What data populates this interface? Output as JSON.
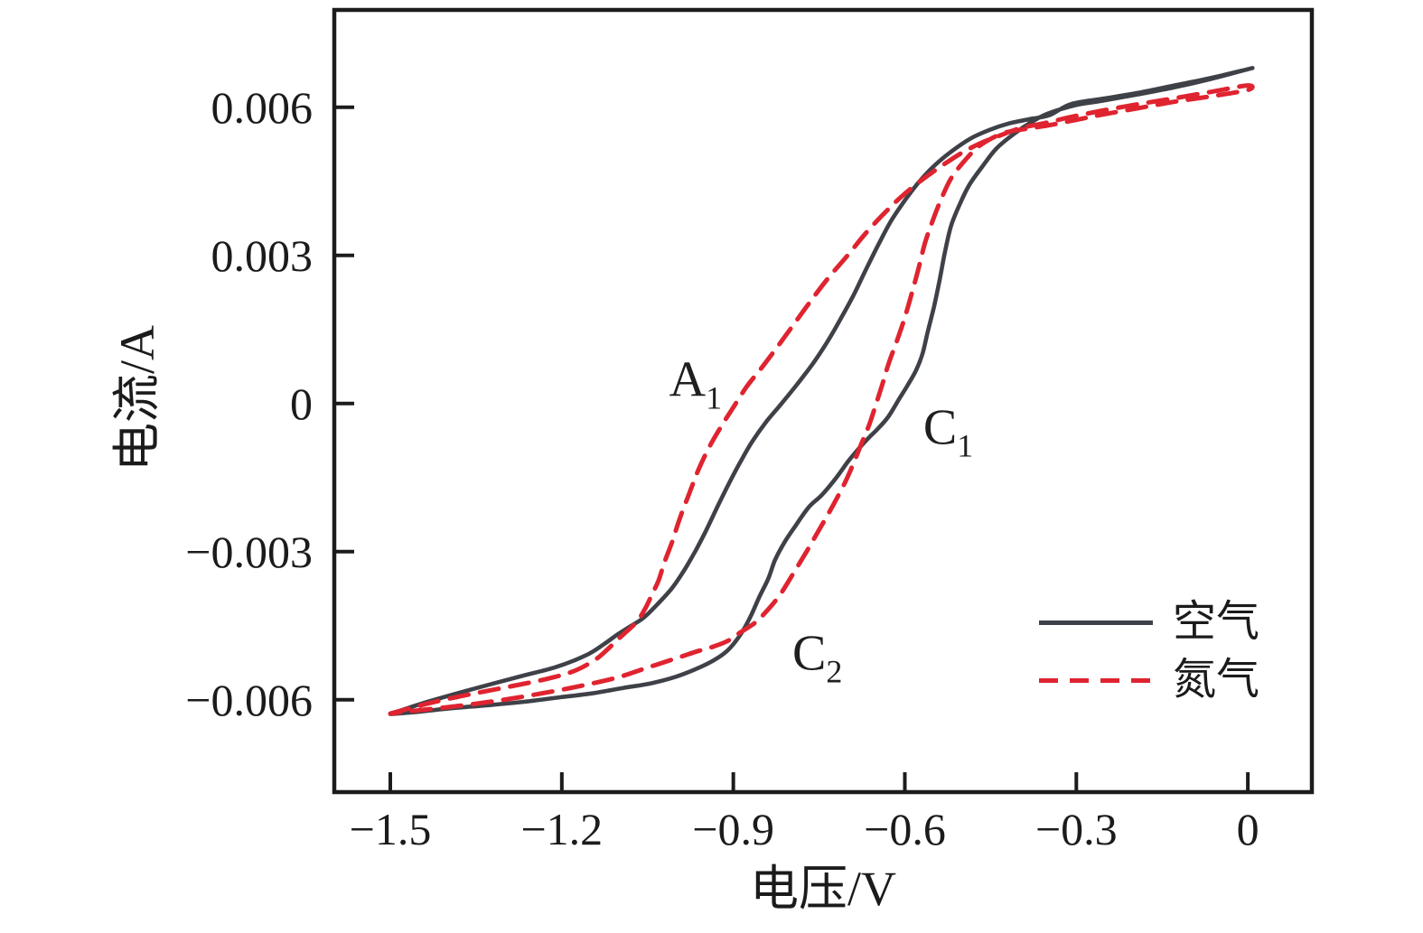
{
  "page": {
    "background": "#ffffff"
  },
  "chart_data": {
    "type": "line",
    "title": "",
    "xlabel": "电压/V",
    "ylabel": "电流/A",
    "xlim": [
      -1.598,
      0.112
    ],
    "ylim": [
      -0.00787,
      0.00797
    ],
    "grid": false,
    "frame": true,
    "tick_direction": "in",
    "spine_color": "#1c1c1c",
    "xticks": [
      {
        "value": -1.5,
        "label": "−1.5"
      },
      {
        "value": -1.2,
        "label": "−1.2"
      },
      {
        "value": -0.9,
        "label": "−0.9"
      },
      {
        "value": -0.6,
        "label": "−0.6"
      },
      {
        "value": -0.3,
        "label": "−0.3"
      },
      {
        "value": 0,
        "label": "0"
      }
    ],
    "yticks": [
      {
        "value": 0.006,
        "label": "0.006"
      },
      {
        "value": 0.003,
        "label": "0.003"
      },
      {
        "value": 0,
        "label": "0"
      },
      {
        "value": -0.003,
        "label": "−0.003"
      },
      {
        "value": -0.006,
        "label": "−0.006"
      }
    ],
    "legend_position": "lower right",
    "series": [
      {
        "name": "空气",
        "color": "#3f4148",
        "line_style": "solid",
        "line_width": 4.6,
        "points_return": [
          [
            -1.5,
            -0.00629
          ],
          [
            -1.44,
            -0.00606
          ],
          [
            -1.361,
            -0.0058
          ],
          [
            -1.274,
            -0.00553
          ],
          [
            -1.211,
            -0.00534
          ],
          [
            -1.158,
            -0.0051
          ],
          [
            -1.127,
            -0.00488
          ],
          [
            -1.103,
            -0.00468
          ],
          [
            -1.081,
            -0.00452
          ],
          [
            -1.057,
            -0.00434
          ],
          [
            -1.034,
            -0.00408
          ],
          [
            -1.008,
            -0.00375
          ],
          [
            -0.986,
            -0.00338
          ],
          [
            -0.966,
            -0.00298
          ],
          [
            -0.948,
            -0.00258
          ],
          [
            -0.929,
            -0.00212
          ],
          [
            -0.909,
            -0.00165
          ],
          [
            -0.888,
            -0.00119
          ],
          [
            -0.868,
            -0.00079
          ],
          [
            -0.843,
            -0.00038
          ],
          [
            -0.817,
            -2e-05
          ],
          [
            -0.789,
            0.00038
          ],
          [
            -0.76,
            0.00082
          ],
          [
            -0.735,
            0.00126
          ],
          [
            -0.711,
            0.00174
          ],
          [
            -0.689,
            0.00221
          ],
          [
            -0.669,
            0.00269
          ],
          [
            -0.647,
            0.0032
          ],
          [
            -0.625,
            0.00368
          ],
          [
            -0.602,
            0.00408
          ],
          [
            -0.577,
            0.00446
          ],
          [
            -0.549,
            0.00481
          ],
          [
            -0.519,
            0.0051
          ],
          [
            -0.486,
            0.00536
          ],
          [
            -0.452,
            0.00554
          ],
          [
            -0.418,
            0.00567
          ],
          [
            -0.381,
            0.00576
          ],
          [
            -0.347,
            0.00584
          ],
          [
            -0.31,
            0.00606
          ],
          [
            -0.255,
            0.00617
          ],
          [
            -0.192,
            0.00629
          ],
          [
            -0.129,
            0.00644
          ],
          [
            -0.065,
            0.00659
          ],
          [
            0.0,
            0.00677
          ]
        ],
        "points_forward": [
          [
            0.0,
            0.00677
          ],
          [
            -0.065,
            0.00657
          ],
          [
            -0.129,
            0.0064
          ],
          [
            -0.192,
            0.00626
          ],
          [
            -0.255,
            0.00613
          ],
          [
            -0.302,
            0.00604
          ],
          [
            -0.35,
            0.00587
          ],
          [
            -0.377,
            0.00571
          ],
          [
            -0.408,
            0.00547
          ],
          [
            -0.44,
            0.00516
          ],
          [
            -0.465,
            0.00479
          ],
          [
            -0.487,
            0.00443
          ],
          [
            -0.503,
            0.00406
          ],
          [
            -0.519,
            0.0036
          ],
          [
            -0.53,
            0.00306
          ],
          [
            -0.539,
            0.00251
          ],
          [
            -0.549,
            0.00196
          ],
          [
            -0.56,
            0.00145
          ],
          [
            -0.569,
            0.00101
          ],
          [
            -0.58,
            0.00068
          ],
          [
            -0.595,
            0.00037
          ],
          [
            -0.609,
            0.00011
          ],
          [
            -0.629,
            -0.00027
          ],
          [
            -0.647,
            -0.00051
          ],
          [
            -0.662,
            -0.00068
          ],
          [
            -0.681,
            -0.00092
          ],
          [
            -0.699,
            -0.00117
          ],
          [
            -0.721,
            -0.00152
          ],
          [
            -0.745,
            -0.00185
          ],
          [
            -0.768,
            -0.0021
          ],
          [
            -0.792,
            -0.00249
          ],
          [
            -0.811,
            -0.00282
          ],
          [
            -0.827,
            -0.00317
          ],
          [
            -0.839,
            -0.00355
          ],
          [
            -0.855,
            -0.00393
          ],
          [
            -0.871,
            -0.00434
          ],
          [
            -0.887,
            -0.00467
          ],
          [
            -0.909,
            -0.00499
          ],
          [
            -0.934,
            -0.0052
          ],
          [
            -0.966,
            -0.00538
          ],
          [
            -1.002,
            -0.00554
          ],
          [
            -1.045,
            -0.00567
          ],
          [
            -1.092,
            -0.00576
          ],
          [
            -1.147,
            -0.00587
          ],
          [
            -1.203,
            -0.00595
          ],
          [
            -1.266,
            -0.00604
          ],
          [
            -1.329,
            -0.00611
          ],
          [
            -1.392,
            -0.00617
          ],
          [
            -1.448,
            -0.00624
          ],
          [
            -1.5,
            -0.00629
          ]
        ]
      },
      {
        "name": "氮气",
        "color": "#df2430",
        "line_style": "dashed",
        "line_width": 5,
        "dash": [
          21,
          13
        ],
        "points_return": [
          [
            -1.5,
            -0.00628
          ],
          [
            -1.432,
            -0.00607
          ],
          [
            -1.361,
            -0.00589
          ],
          [
            -1.29,
            -0.00573
          ],
          [
            -1.227,
            -0.00558
          ],
          [
            -1.179,
            -0.00542
          ],
          [
            -1.143,
            -0.0052
          ],
          [
            -1.121,
            -0.00499
          ],
          [
            -1.105,
            -0.00481
          ],
          [
            -1.086,
            -0.00461
          ],
          [
            -1.068,
            -0.00441
          ],
          [
            -1.054,
            -0.00415
          ],
          [
            -1.042,
            -0.00386
          ],
          [
            -1.031,
            -0.00359
          ],
          [
            -1.02,
            -0.0032
          ],
          [
            -1.007,
            -0.0028
          ],
          [
            -0.994,
            -0.00234
          ],
          [
            -0.978,
            -0.00185
          ],
          [
            -0.961,
            -0.00134
          ],
          [
            -0.942,
            -0.00088
          ],
          [
            -0.921,
            -0.00046
          ],
          [
            -0.899,
            -6e-05
          ],
          [
            -0.876,
            0.00035
          ],
          [
            -0.85,
            0.00073
          ],
          [
            -0.824,
            0.00113
          ],
          [
            -0.795,
            0.00159
          ],
          [
            -0.765,
            0.00207
          ],
          [
            -0.734,
            0.00254
          ],
          [
            -0.7,
            0.003
          ],
          [
            -0.669,
            0.00344
          ],
          [
            -0.637,
            0.00384
          ],
          [
            -0.606,
            0.00419
          ],
          [
            -0.571,
            0.00452
          ],
          [
            -0.536,
            0.00481
          ],
          [
            -0.501,
            0.00507
          ],
          [
            -0.468,
            0.00527
          ],
          [
            -0.433,
            0.00543
          ],
          [
            -0.397,
            0.00558
          ],
          [
            -0.358,
            0.00567
          ],
          [
            -0.31,
            0.0058
          ],
          [
            -0.255,
            0.00593
          ],
          [
            -0.192,
            0.00606
          ],
          [
            -0.129,
            0.00618
          ],
          [
            -0.065,
            0.00631
          ],
          [
            0.0,
            0.00644
          ]
        ],
        "points_forward": [
          [
            0.0,
            0.00635
          ],
          [
            -0.065,
            0.00622
          ],
          [
            -0.129,
            0.00611
          ],
          [
            -0.192,
            0.00598
          ],
          [
            -0.255,
            0.00585
          ],
          [
            -0.302,
            0.00574
          ],
          [
            -0.35,
            0.00563
          ],
          [
            -0.389,
            0.00556
          ],
          [
            -0.429,
            0.00547
          ],
          [
            -0.468,
            0.00523
          ],
          [
            -0.495,
            0.00492
          ],
          [
            -0.519,
            0.00456
          ],
          [
            -0.536,
            0.00415
          ],
          [
            -0.552,
            0.00368
          ],
          [
            -0.565,
            0.00324
          ],
          [
            -0.577,
            0.00269
          ],
          [
            -0.59,
            0.00214
          ],
          [
            -0.602,
            0.00167
          ],
          [
            -0.615,
            0.00123
          ],
          [
            -0.628,
            0.00082
          ],
          [
            -0.639,
            0.0004
          ],
          [
            -0.65,
            0.0
          ],
          [
            -0.662,
            -0.00042
          ],
          [
            -0.675,
            -0.00079
          ],
          [
            -0.689,
            -0.00119
          ],
          [
            -0.705,
            -0.00161
          ],
          [
            -0.726,
            -0.00207
          ],
          [
            -0.748,
            -0.00252
          ],
          [
            -0.771,
            -0.00298
          ],
          [
            -0.795,
            -0.00344
          ],
          [
            -0.82,
            -0.0039
          ],
          [
            -0.846,
            -0.00426
          ],
          [
            -0.863,
            -0.00445
          ],
          [
            -0.887,
            -0.00463
          ],
          [
            -0.91,
            -0.00481
          ],
          [
            -0.934,
            -0.00492
          ],
          [
            -0.966,
            -0.00503
          ],
          [
            -1.005,
            -0.00518
          ],
          [
            -1.053,
            -0.00536
          ],
          [
            -1.1,
            -0.00554
          ],
          [
            -1.155,
            -0.00569
          ],
          [
            -1.211,
            -0.00582
          ],
          [
            -1.274,
            -0.00595
          ],
          [
            -1.337,
            -0.00606
          ],
          [
            -1.4,
            -0.00615
          ],
          [
            -1.456,
            -0.00622
          ],
          [
            -1.5,
            -0.00628
          ]
        ]
      }
    ],
    "annotations": [
      {
        "text": "A",
        "sub": "1",
        "x": -0.966,
        "y": 0.00037
      },
      {
        "text": "C",
        "sub": "1",
        "x": -0.524,
        "y": -0.0006
      },
      {
        "text": "C",
        "sub": "2",
        "x": -0.753,
        "y": -0.00518
      }
    ]
  },
  "legend": {
    "items": [
      {
        "label": "空气",
        "line_style": "solid",
        "color": "#3f4148"
      },
      {
        "label": "氮气",
        "line_style": "dashed",
        "color": "#df2430"
      }
    ]
  }
}
